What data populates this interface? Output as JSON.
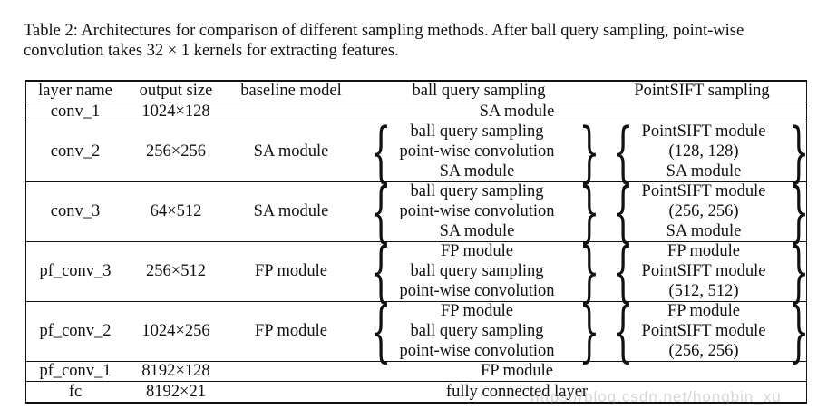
{
  "caption": "Table 2: Architectures for comparison of different sampling methods. After ball query sampling, point-wise convolution takes 32 × 1 kernels for extracting features.",
  "headers": [
    "layer name",
    "output size",
    "baseline model",
    "ball query sampling",
    "PointSIFT sampling"
  ],
  "rows": [
    {
      "name": "conv_1",
      "size": "1024×128",
      "span": "SA module"
    },
    {
      "name": "conv_2",
      "size": "256×256",
      "baseline": "SA module",
      "ball": [
        "ball query sampling",
        "point-wise convolution",
        "SA module"
      ],
      "sift": [
        "PointSIFT module",
        "(128, 128)",
        "SA module"
      ]
    },
    {
      "name": "conv_3",
      "size": "64×512",
      "baseline": "SA module",
      "ball": [
        "ball query sampling",
        "point-wise convolution",
        "SA module"
      ],
      "sift": [
        "PointSIFT module",
        "(256, 256)",
        "SA module"
      ]
    },
    {
      "name": "pf_conv_3",
      "size": "256×512",
      "baseline": "FP module",
      "ball": [
        "FP module",
        "ball query sampling",
        "point-wise convolution"
      ],
      "sift": [
        "FP module",
        "PointSIFT module",
        "(512, 512)"
      ]
    },
    {
      "name": "pf_conv_2",
      "size": "1024×256",
      "baseline": "FP module",
      "ball": [
        "FP module",
        "ball query sampling",
        "point-wise convolution"
      ],
      "sift": [
        "FP module",
        "PointSIFT module",
        "(256, 256)"
      ]
    },
    {
      "name": "pf_conv_1",
      "size": "8192×128",
      "span": "FP module"
    },
    {
      "name": "fc",
      "size": "8192×21",
      "span": "fully connected layer"
    }
  ],
  "watermark": "https://blog.csdn.net/hongbin_xu"
}
